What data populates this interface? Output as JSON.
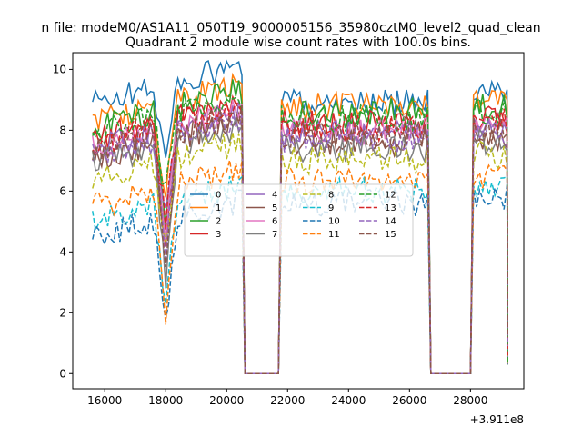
{
  "chart_data": {
    "type": "line",
    "suptitle": "n file: modeM0/AS1A11_050T19_9000005156_35980cztM0_level2_quad_clean",
    "title": "Quadrant 2 module wise count rates with 100.0s bins.",
    "xlabel": "",
    "ylabel": "",
    "x_offset_label": "+3.911e8",
    "xlim": [
      14950,
      29750
    ],
    "ylim": [
      -0.5,
      10.55
    ],
    "xticks": [
      16000,
      18000,
      20000,
      22000,
      24000,
      26000,
      28000
    ],
    "xtick_labels": [
      "16000",
      "18000",
      "20000",
      "22000",
      "24000",
      "26000",
      "28000"
    ],
    "yticks": [
      0,
      2,
      4,
      6,
      8,
      10
    ],
    "ytick_labels": [
      "0",
      "2",
      "4",
      "6",
      "8",
      "10"
    ],
    "grid": false,
    "legend_position": "center",
    "legend_columns": 4,
    "bin_seconds": 100,
    "segments": [
      {
        "start": 15600,
        "end": 20500,
        "dip_at": 18000
      },
      {
        "start": 21800,
        "end": 26600,
        "dip_at": null
      },
      {
        "start": 28100,
        "end": 29200,
        "dip_at": null
      }
    ],
    "zero_gaps": [
      {
        "start": 20600,
        "end": 21700
      },
      {
        "start": 26700,
        "end": 28000
      }
    ],
    "series": [
      {
        "name": "0",
        "color": "#1f77b4",
        "dash": "solid",
        "levels": [
          9.2,
          8.9,
          9.4
        ]
      },
      {
        "name": "1",
        "color": "#ff7f0e",
        "dash": "solid",
        "levels": [
          8.6,
          8.8,
          9.0
        ]
      },
      {
        "name": "2",
        "color": "#2ca02c",
        "dash": "solid",
        "levels": [
          8.4,
          8.6,
          8.8
        ]
      },
      {
        "name": "3",
        "color": "#d62728",
        "dash": "solid",
        "levels": [
          8.0,
          8.2,
          8.4
        ]
      },
      {
        "name": "4",
        "color": "#9467bd",
        "dash": "solid",
        "levels": [
          7.7,
          7.9,
          8.1
        ]
      },
      {
        "name": "5",
        "color": "#8c564b",
        "dash": "solid",
        "levels": [
          7.4,
          7.6,
          7.8
        ]
      },
      {
        "name": "6",
        "color": "#e377c2",
        "dash": "solid",
        "levels": [
          7.8,
          8.0,
          8.2
        ]
      },
      {
        "name": "7",
        "color": "#7f7f7f",
        "dash": "solid",
        "levels": [
          7.2,
          7.4,
          7.6
        ]
      },
      {
        "name": "8",
        "color": "#bcbd22",
        "dash": "dashed",
        "levels": [
          6.7,
          7.0,
          7.2
        ]
      },
      {
        "name": "9",
        "color": "#17becf",
        "dash": "dashed",
        "levels": [
          5.3,
          6.0,
          6.2
        ]
      },
      {
        "name": "10",
        "color": "#1f77b4",
        "dash": "dashed",
        "levels": [
          4.8,
          5.6,
          5.8
        ]
      },
      {
        "name": "11",
        "color": "#ff7f0e",
        "dash": "dashed",
        "levels": [
          5.8,
          6.3,
          6.5
        ]
      },
      {
        "name": "12",
        "color": "#2ca02c",
        "dash": "dashed",
        "levels": [
          8.2,
          8.4,
          8.6
        ]
      },
      {
        "name": "13",
        "color": "#d62728",
        "dash": "dashed",
        "levels": [
          7.9,
          8.1,
          8.3
        ]
      },
      {
        "name": "14",
        "color": "#9467bd",
        "dash": "dashed",
        "levels": [
          7.5,
          7.7,
          7.9
        ]
      },
      {
        "name": "15",
        "color": "#8c564b",
        "dash": "dashed",
        "levels": [
          7.6,
          7.8,
          8.0
        ]
      }
    ]
  }
}
